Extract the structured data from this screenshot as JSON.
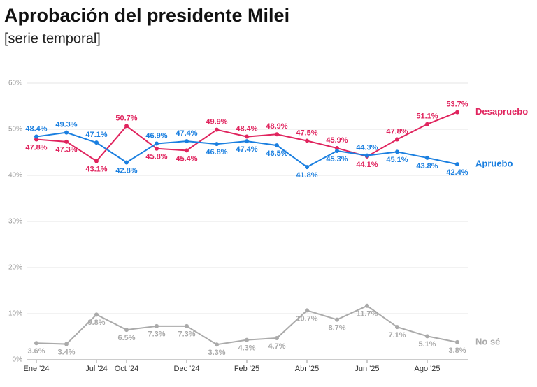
{
  "chart_data": {
    "type": "line",
    "title": "Aprobación del presidente Milei",
    "subtitle": "[serie temporal]",
    "categories": [
      "Ene '24",
      null,
      "Jul '24",
      "Oct '24",
      null,
      "Dec '24",
      null,
      "Feb '25",
      null,
      "Abr '25",
      null,
      "Jun '25",
      null,
      "Ago '25",
      null
    ],
    "series": [
      {
        "name": "Desapruebo",
        "color": "#e0245e",
        "values": [
          47.8,
          47.3,
          43.1,
          50.7,
          45.8,
          45.4,
          49.9,
          48.4,
          48.9,
          47.5,
          45.9,
          44.1,
          47.8,
          51.1,
          53.7
        ],
        "value_labels": [
          "47.8%",
          "47.3%",
          "43.1%",
          "50.7%",
          "45.8%",
          "45.4%",
          "49.9%",
          "48.4%",
          "48.9%",
          "47.5%",
          "45.9%",
          "44.1%",
          "47.8%",
          "51.1%",
          "53.7%"
        ]
      },
      {
        "name": "Apruebo",
        "color": "#1a7fe0",
        "values": [
          48.4,
          49.3,
          47.1,
          42.8,
          46.9,
          47.4,
          46.8,
          47.4,
          46.5,
          41.8,
          45.3,
          44.3,
          45.1,
          43.8,
          42.4
        ],
        "value_labels": [
          "48.4%",
          "49.3%",
          "47.1%",
          "42.8%",
          "46.9%",
          "47.4%",
          "46.8%",
          "47.4%",
          "46.5%",
          "41.8%",
          "45.3%",
          "44.3%",
          "45.1%",
          "43.8%",
          "42.4%"
        ]
      },
      {
        "name": "No sé",
        "color": "#aaaaaa",
        "values": [
          3.6,
          3.4,
          9.8,
          6.5,
          7.3,
          7.3,
          3.3,
          4.3,
          4.7,
          10.7,
          8.7,
          11.7,
          7.1,
          5.1,
          3.8
        ],
        "value_labels": [
          "3.6%",
          "3.4%",
          "9.8%",
          "6.5%",
          "7.3%",
          "7.3%",
          "3.3%",
          "4.3%",
          "4.7%",
          "10.7%",
          "8.7%",
          "11.7%",
          "7.1%",
          "5.1%",
          "3.8%"
        ]
      }
    ],
    "ylim": [
      0,
      60
    ],
    "yticks": [
      {
        "value": 0,
        "label": "0%"
      },
      {
        "value": 10,
        "label": "10%"
      },
      {
        "value": 20,
        "label": "20%"
      },
      {
        "value": 30,
        "label": "30%"
      },
      {
        "value": 40,
        "label": "40%"
      },
      {
        "value": 50,
        "label": "50%"
      },
      {
        "value": 60,
        "label": "60%"
      }
    ],
    "grid": true
  }
}
